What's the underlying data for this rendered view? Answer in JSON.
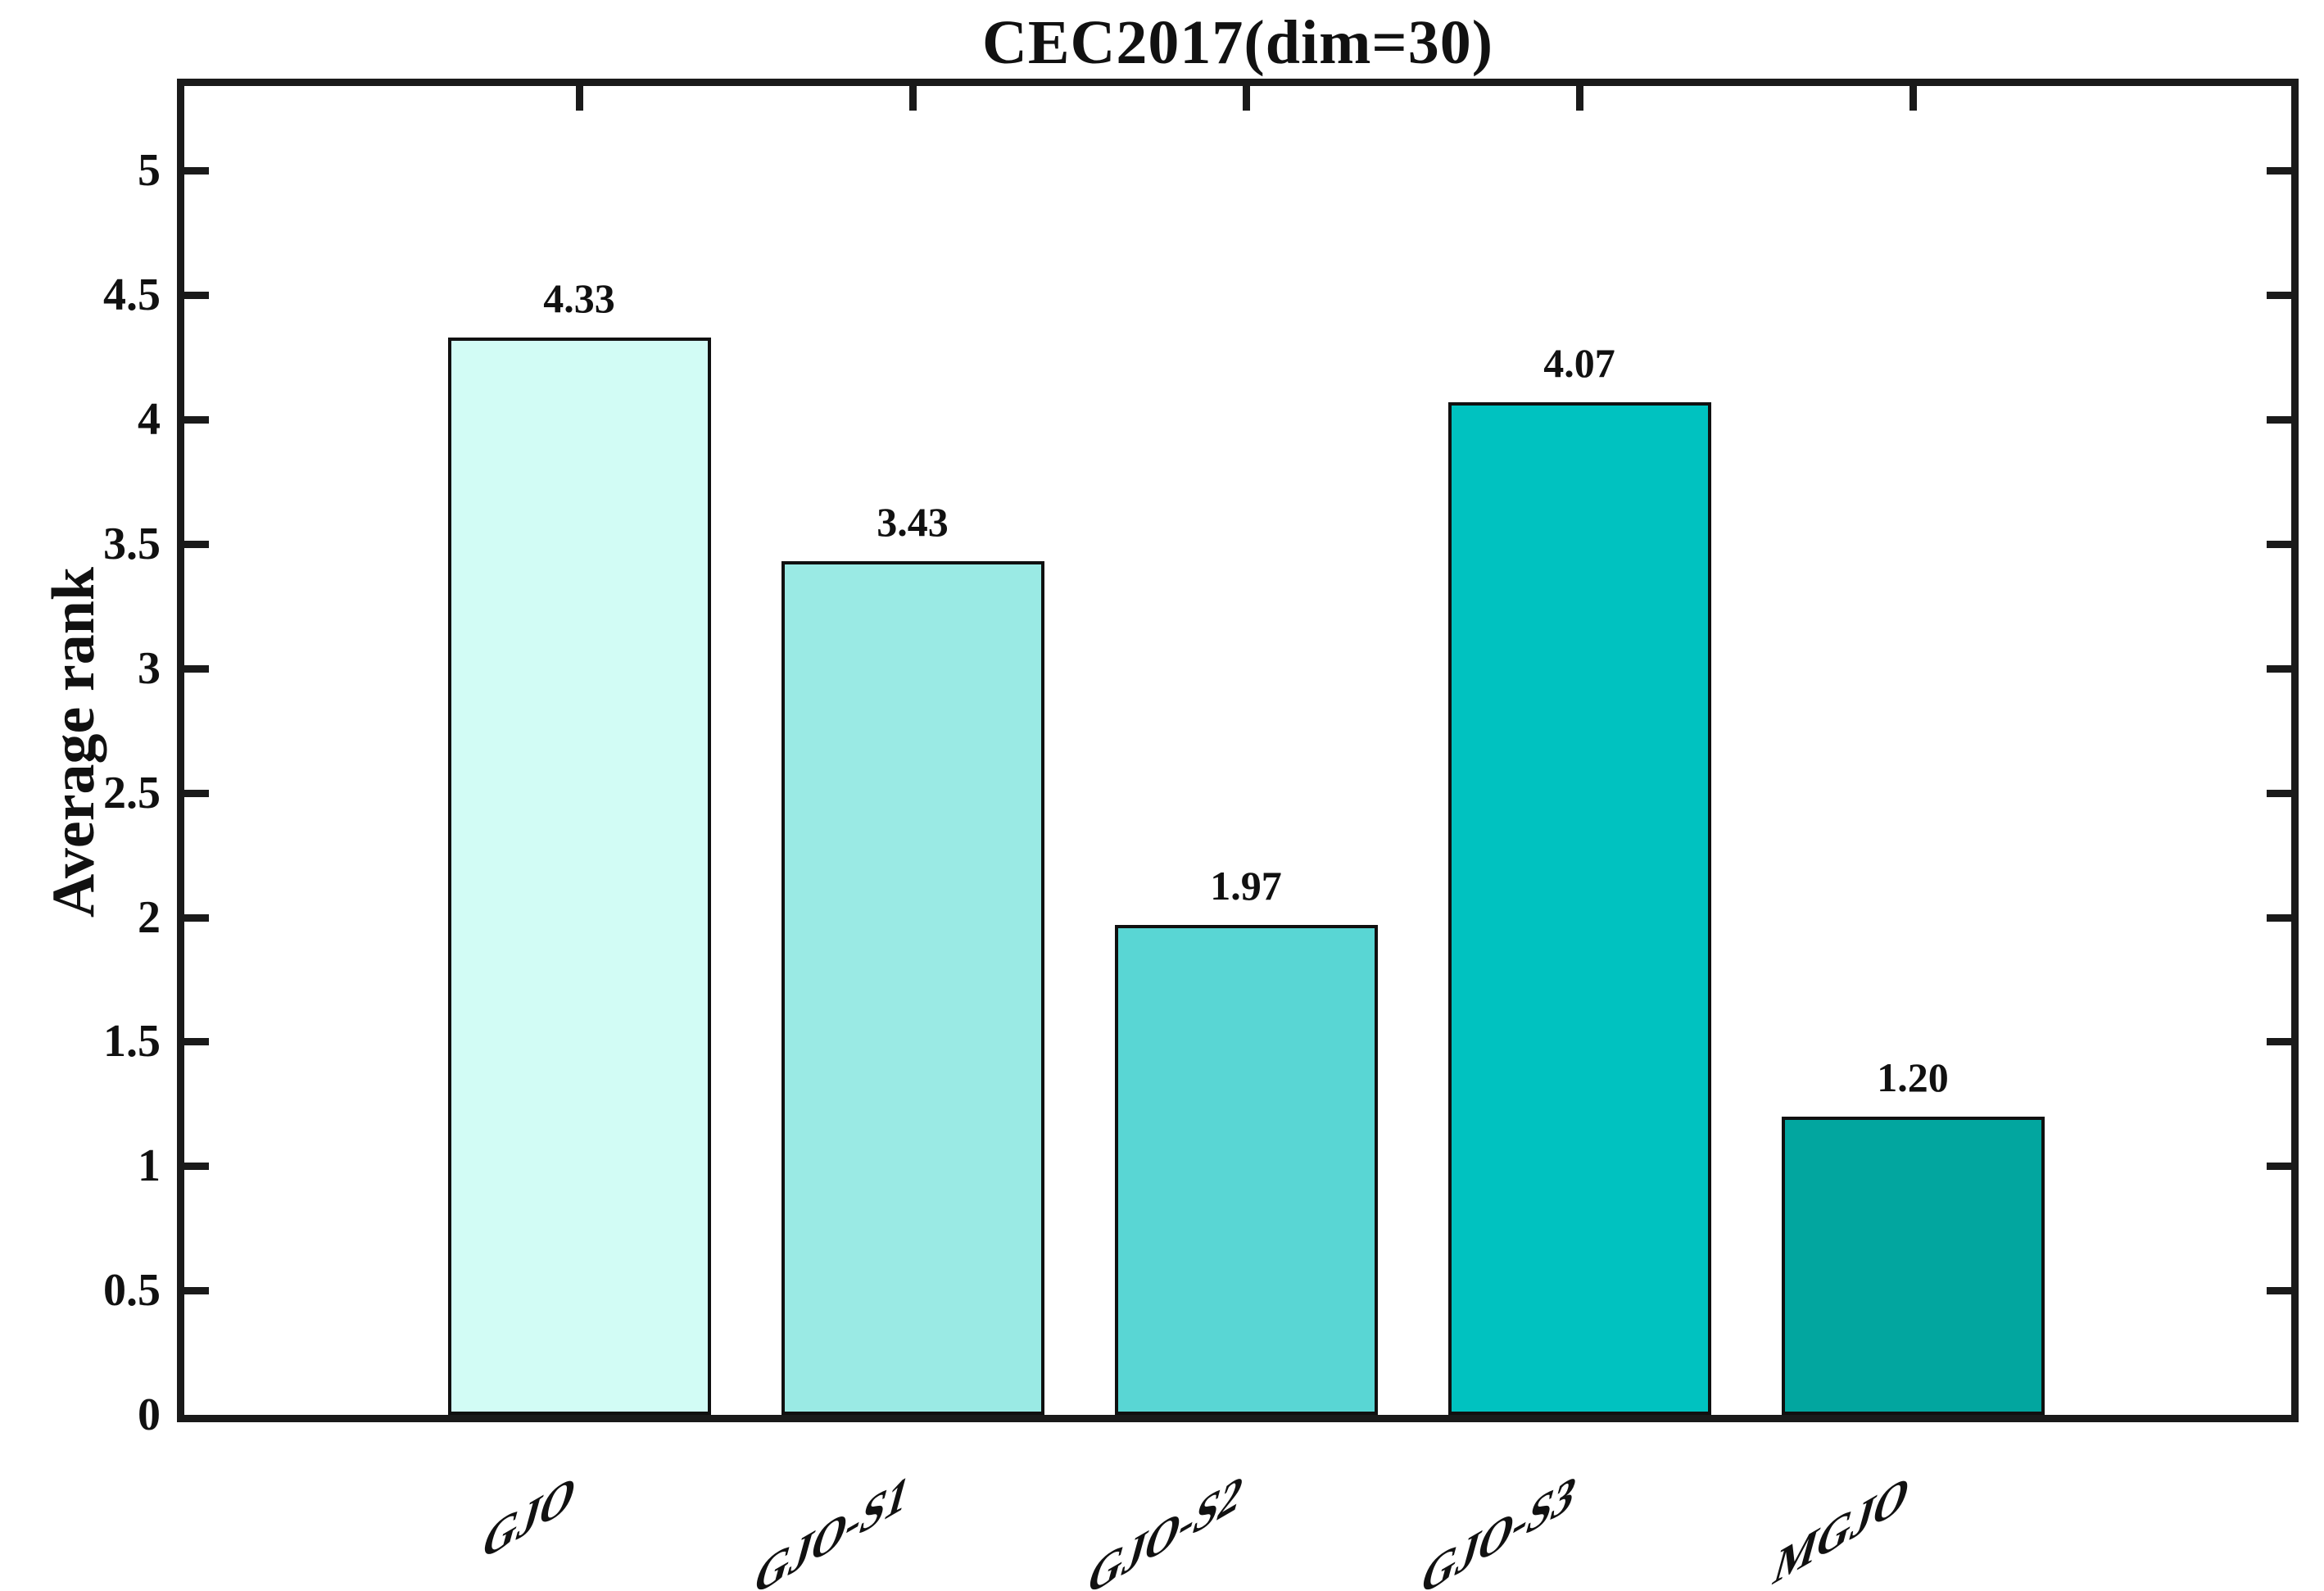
{
  "title": "CEC2017(dim=30)",
  "y_axis_title": "Average rank",
  "chart_data": {
    "type": "bar",
    "title": "CEC2017(dim=30)",
    "xlabel": "",
    "ylabel": "Average rank",
    "categories": [
      "GJO",
      "GJO-S1",
      "GJO-S2",
      "GJO-S3",
      "MGJO"
    ],
    "values": [
      4.33,
      3.43,
      1.97,
      4.07,
      1.2
    ],
    "value_labels": [
      "4.33",
      "3.43",
      "1.97",
      "4.07",
      "1.20"
    ],
    "ylim": [
      0,
      5.34
    ],
    "yticks": [
      0,
      0.5,
      1,
      1.5,
      2,
      2.5,
      3,
      3.5,
      4,
      4.5,
      5
    ],
    "ytick_labels": [
      "0",
      "0.5",
      "1",
      "1.5",
      "2",
      "2.5",
      "3",
      "3.5",
      "4",
      "4.5",
      "5"
    ],
    "grid": false,
    "legend": null,
    "tick_direction": "in",
    "box": true,
    "bar_colors": [
      "#d2fcf5",
      "#9aeae4",
      "#59d6d4",
      "#00c2c0",
      "#02a69f"
    ],
    "bar_edge_color": "#101010",
    "axis_color": "#1a1a1a",
    "text_color": "#111111",
    "background_color": "#ffffff"
  }
}
